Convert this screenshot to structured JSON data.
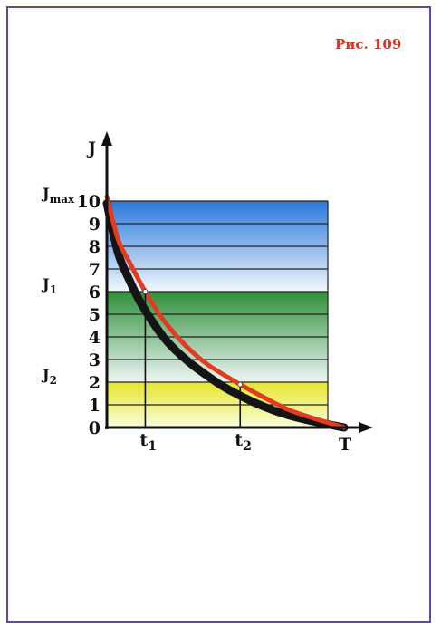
{
  "figure_label": "Рис. 109",
  "chart_data": {
    "type": "line",
    "ylabel": "J",
    "xlabel": "T",
    "ylim": [
      0,
      10
    ],
    "yticks": [
      "0",
      "1",
      "2",
      "3",
      "4",
      "5",
      "6",
      "7",
      "8",
      "9",
      "10"
    ],
    "xticks": [
      {
        "main": "t",
        "sub": "1",
        "value": 1.7
      },
      {
        "main": "t",
        "sub": "2",
        "value": 5.9
      }
    ],
    "ylevel_labels": [
      {
        "main": "J",
        "sub": "max",
        "value": 10
      },
      {
        "main": "J",
        "sub": "1",
        "value": 6
      },
      {
        "main": "J",
        "sub": "2",
        "value": 2
      }
    ],
    "bands": [
      {
        "from": 0,
        "to": 2,
        "top_color": "#e6e629",
        "bottom_color": "#fafde0"
      },
      {
        "from": 2,
        "to": 6,
        "top_color": "#2f8f3a",
        "bottom_color": "#eef6f6"
      },
      {
        "from": 6,
        "to": 10,
        "top_color": "#2a78dd",
        "bottom_color": "#f2f8fb"
      }
    ],
    "series": [
      {
        "role": "black-curve",
        "color": "#141414",
        "x": [
          0,
          0.5,
          1,
          1.5,
          2,
          2.5,
          3,
          3.5,
          4,
          5,
          6,
          7,
          8,
          9,
          10.5
        ],
        "y": [
          9.9,
          7.7,
          6.5,
          5.5,
          4.7,
          4.0,
          3.45,
          3.0,
          2.6,
          1.9,
          1.35,
          0.9,
          0.55,
          0.3,
          0
        ]
      },
      {
        "role": "red-curve",
        "color": "#e33b1f",
        "x": [
          0,
          0.5,
          1,
          1.7,
          2.5,
          3.5,
          4.5,
          5.9,
          7,
          8,
          9,
          10.5
        ],
        "y": [
          10.2,
          8.3,
          7.3,
          6.0,
          4.75,
          3.6,
          2.75,
          1.9,
          1.3,
          0.8,
          0.45,
          0
        ]
      }
    ],
    "markers": [
      {
        "x": 1.7,
        "y": 6.0,
        "color": "#ffffff"
      },
      {
        "x": 5.9,
        "y": 1.9,
        "color": "#ffffff"
      }
    ],
    "xlim": [
      0,
      11.3
    ]
  }
}
